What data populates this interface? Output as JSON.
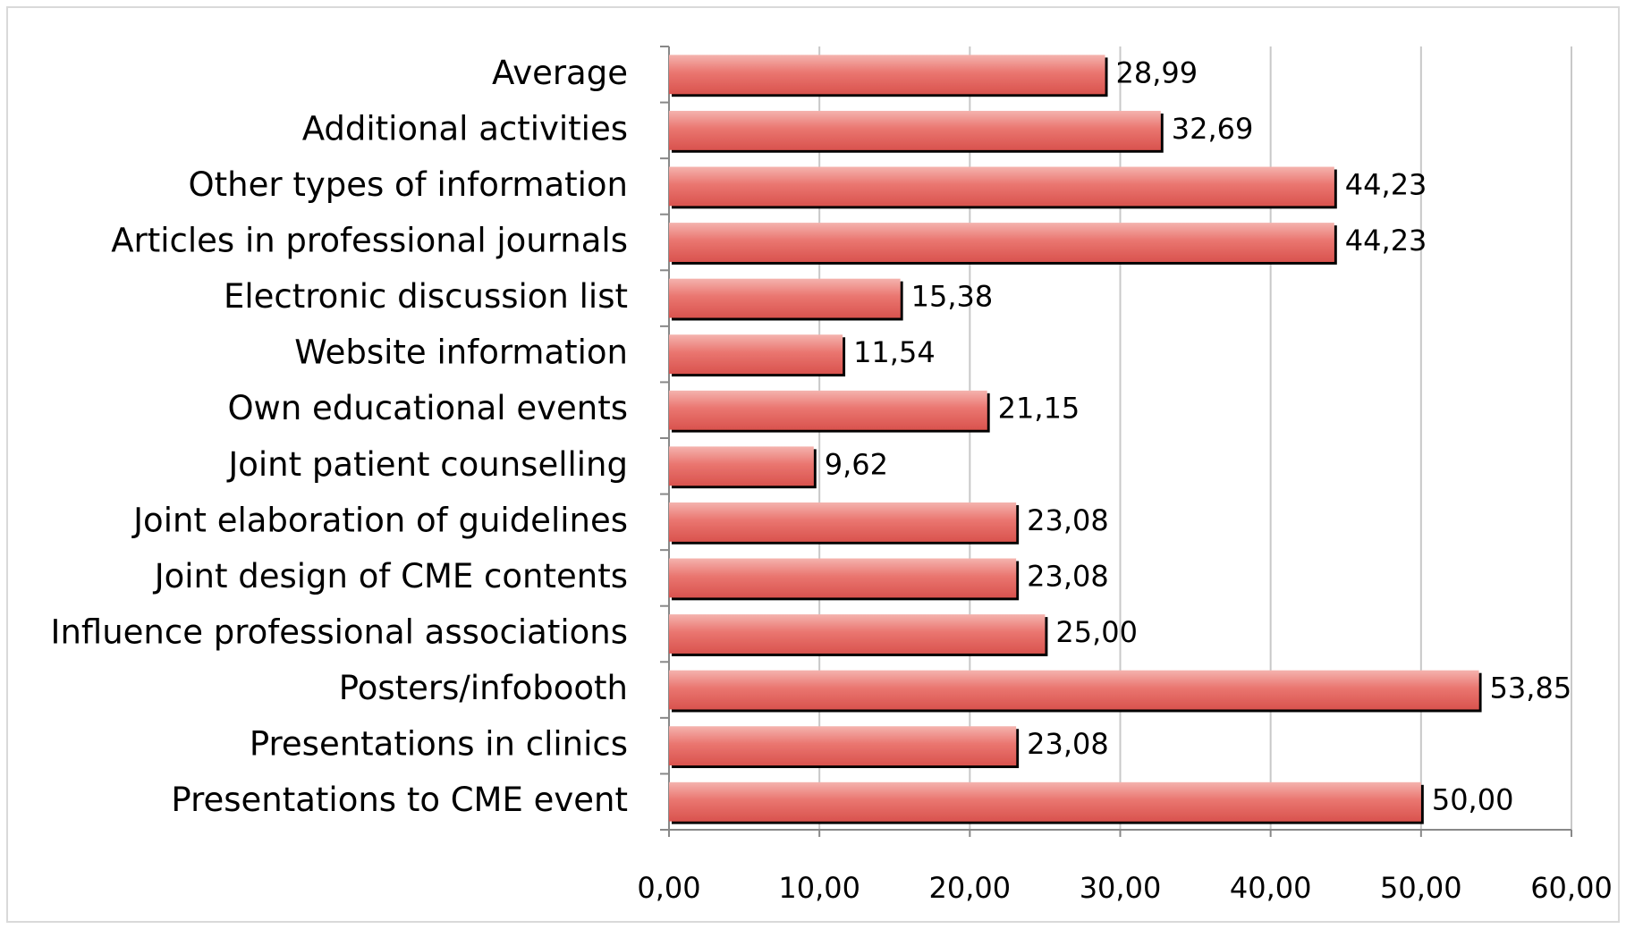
{
  "chart_data": {
    "type": "bar",
    "orientation": "horizontal",
    "categories": [
      "Average",
      "Additional activities",
      "Other types of information",
      "Articles in professional journals",
      "Electronic discussion list",
      "Website information",
      "Own educational events",
      "Joint patient counselling",
      "Joint elaboration of guidelines",
      "Joint design of CME contents",
      "Influence professional associations",
      "Posters/infobooth",
      "Presentations in clinics",
      "Presentations to CME event"
    ],
    "values": [
      28.99,
      32.69,
      44.23,
      44.23,
      15.38,
      11.54,
      21.15,
      9.62,
      23.08,
      23.08,
      25.0,
      53.85,
      23.08,
      50.0
    ],
    "value_labels": [
      "28,99",
      "32,69",
      "44,23",
      "44,23",
      "15,38",
      "11,54",
      "21,15",
      "9,62",
      "23,08",
      "23,08",
      "25,00",
      "53,85",
      "23,08",
      "50,00"
    ],
    "color": "#e8605c",
    "xlim": [
      0,
      60
    ],
    "xticks": [
      {
        "value": 0,
        "label": "0,00"
      },
      {
        "value": 10,
        "label": "10,00"
      },
      {
        "value": 20,
        "label": "20,00"
      },
      {
        "value": 30,
        "label": "30,00"
      },
      {
        "value": 40,
        "label": "40,00"
      },
      {
        "value": 50,
        "label": "50,00"
      },
      {
        "value": 60,
        "label": "60,00"
      }
    ],
    "grid": true
  }
}
